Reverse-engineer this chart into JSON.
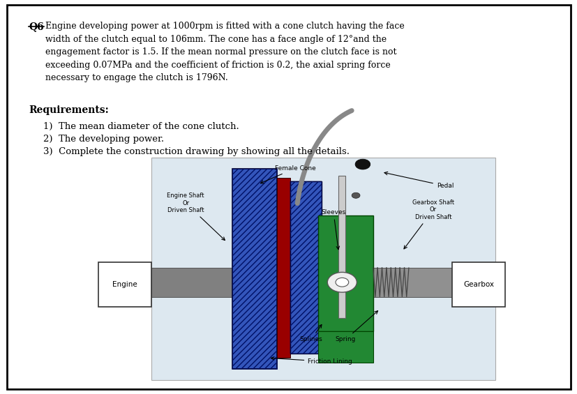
{
  "bg_color": "#ffffff",
  "border_color": "#000000",
  "diagram_bg": "#dde8f0",
  "q6_label": "Q6",
  "main_text": "Engine developing power at 1000rpm is fitted with a cone clutch having the face\nwidth of the clutch equal to 106mm. The cone has a face angle of 12°and the\nengagement factor is 1.5. If the mean normal pressure on the clutch face is not\nexceeding 0.07MPa and the coefficient of friction is 0.2, the axial spring force\nnecessary to engage the clutch is 1796N.",
  "requirements_header": "Requirements:",
  "req1": "1)  The mean diameter of the cone clutch.",
  "req2": "2)  The developing power.",
  "req3": "3)  Complete the construction drawing by showing all the details.",
  "label_female_cone": "Female Cone",
  "label_pedal": "Pedal",
  "label_engine_shaft": "Engine Shaft\nOr\nDriven Shaft",
  "label_sleeves": "Sleeves",
  "label_gearbox_shaft": "Gearbox Shaft\nOr\nDriven Shaft",
  "label_engine": "Engine",
  "label_gearbox": "Gearbox",
  "label_splines": "Splines",
  "label_spring": "Spring",
  "label_friction": "Friction Lining",
  "shaft_color": "#808080",
  "shaft_dark": "#555555",
  "blue_color": "#3355bb",
  "blue_hatch_color": "#001166",
  "red_color": "#990000",
  "green_color": "#228833",
  "green_dark": "#004400",
  "lever_color": "#888888",
  "knob_color": "#111111"
}
